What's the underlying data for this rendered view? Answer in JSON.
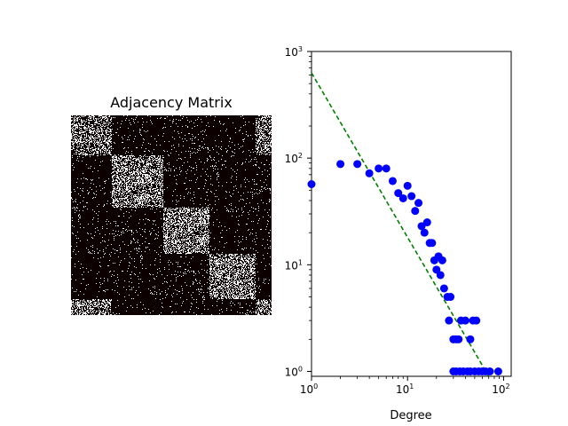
{
  "chart_data": [
    {
      "type": "heatmap",
      "title": "Adjacency Matrix",
      "description_blocks": [
        {
          "from": 0.0,
          "to": 0.2,
          "density": 0.38
        },
        {
          "from": 0.2,
          "to": 0.46,
          "density": 0.42
        },
        {
          "from": 0.46,
          "to": 0.69,
          "density": 0.42
        },
        {
          "from": 0.69,
          "to": 0.92,
          "density": 0.42
        },
        {
          "from": 0.92,
          "to": 1.0,
          "density": 0.38
        }
      ],
      "background_density": 0.035,
      "colors": {
        "low": "#0d0000",
        "high": "#ffffff"
      }
    },
    {
      "type": "scatter",
      "xlabel": "Degree",
      "ylabel": "",
      "xscale": "log",
      "yscale": "log",
      "xlim": [
        1,
        120
      ],
      "ylim": [
        0.9,
        1000
      ],
      "x_ticks": [
        {
          "value": 1,
          "base": "10",
          "exp": "0"
        },
        {
          "value": 10,
          "base": "10",
          "exp": "1"
        },
        {
          "value": 100,
          "base": "10",
          "exp": "2"
        }
      ],
      "y_ticks": [
        {
          "value": 1,
          "base": "10",
          "exp": "0"
        },
        {
          "value": 10,
          "base": "10",
          "exp": "1"
        },
        {
          "value": 100,
          "base": "10",
          "exp": "2"
        },
        {
          "value": 1000,
          "base": "10",
          "exp": "3"
        }
      ],
      "points": [
        [
          1,
          57
        ],
        [
          2,
          88
        ],
        [
          3,
          88
        ],
        [
          4,
          72
        ],
        [
          5,
          80
        ],
        [
          6,
          80
        ],
        [
          7,
          61
        ],
        [
          8,
          47
        ],
        [
          9,
          42
        ],
        [
          10,
          55
        ],
        [
          11,
          44
        ],
        [
          12,
          32
        ],
        [
          13,
          38
        ],
        [
          14,
          23
        ],
        [
          15,
          20
        ],
        [
          16,
          25
        ],
        [
          17,
          16
        ],
        [
          18,
          16
        ],
        [
          19,
          11
        ],
        [
          20,
          9
        ],
        [
          21,
          12
        ],
        [
          22,
          8
        ],
        [
          23,
          11
        ],
        [
          24,
          6
        ],
        [
          26,
          5
        ],
        [
          27,
          3
        ],
        [
          28,
          5
        ],
        [
          30,
          2
        ],
        [
          32,
          2
        ],
        [
          34,
          2
        ],
        [
          36,
          3
        ],
        [
          40,
          3
        ],
        [
          45,
          2
        ],
        [
          48,
          3
        ],
        [
          52,
          3
        ],
        [
          30,
          1
        ],
        [
          32,
          1
        ],
        [
          35,
          1
        ],
        [
          38,
          1
        ],
        [
          42,
          1
        ],
        [
          45,
          1
        ],
        [
          50,
          1
        ],
        [
          55,
          1
        ],
        [
          60,
          1
        ],
        [
          65,
          1
        ],
        [
          72,
          1
        ],
        [
          88,
          1
        ]
      ],
      "fit_line": {
        "x": [
          1,
          70
        ],
        "y": [
          630,
          0.9
        ]
      },
      "colors": {
        "points": "#0000ff",
        "fit_line": "#008000"
      }
    }
  ]
}
